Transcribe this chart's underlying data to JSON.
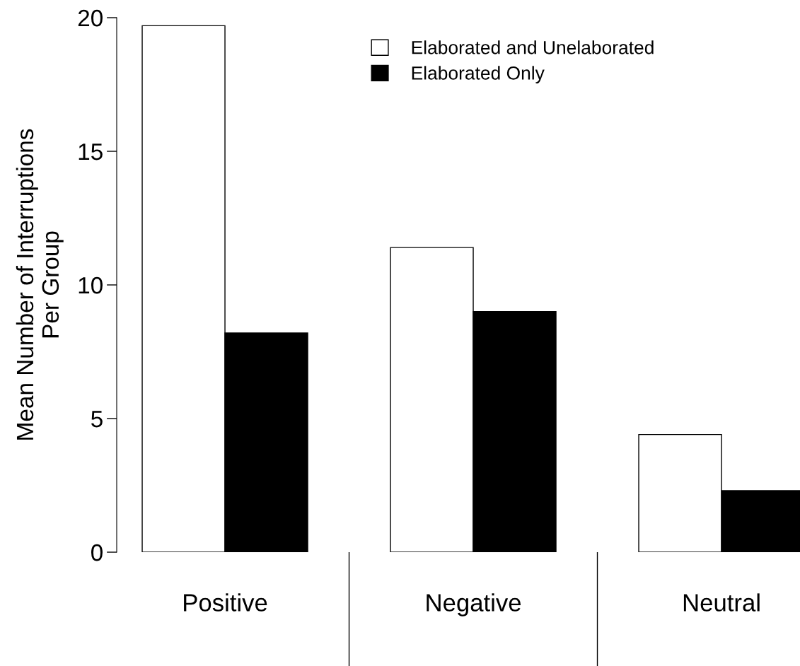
{
  "chart_data": {
    "type": "bar",
    "ylabel": "Mean Number of Interruptions\nPer Group",
    "categories": [
      "Positive",
      "Negative",
      "Neutral"
    ],
    "series": [
      {
        "name": "Elaborated and Unelaborated",
        "color": "#ffffff",
        "values": [
          19.7,
          11.4,
          4.4
        ]
      },
      {
        "name": "Elaborated Only",
        "color": "#000000",
        "values": [
          8.2,
          9.0,
          2.3
        ]
      }
    ],
    "ylim": [
      0,
      20
    ],
    "yticks": [
      0,
      5,
      10,
      15,
      20
    ],
    "grid": false,
    "legend": "top"
  }
}
